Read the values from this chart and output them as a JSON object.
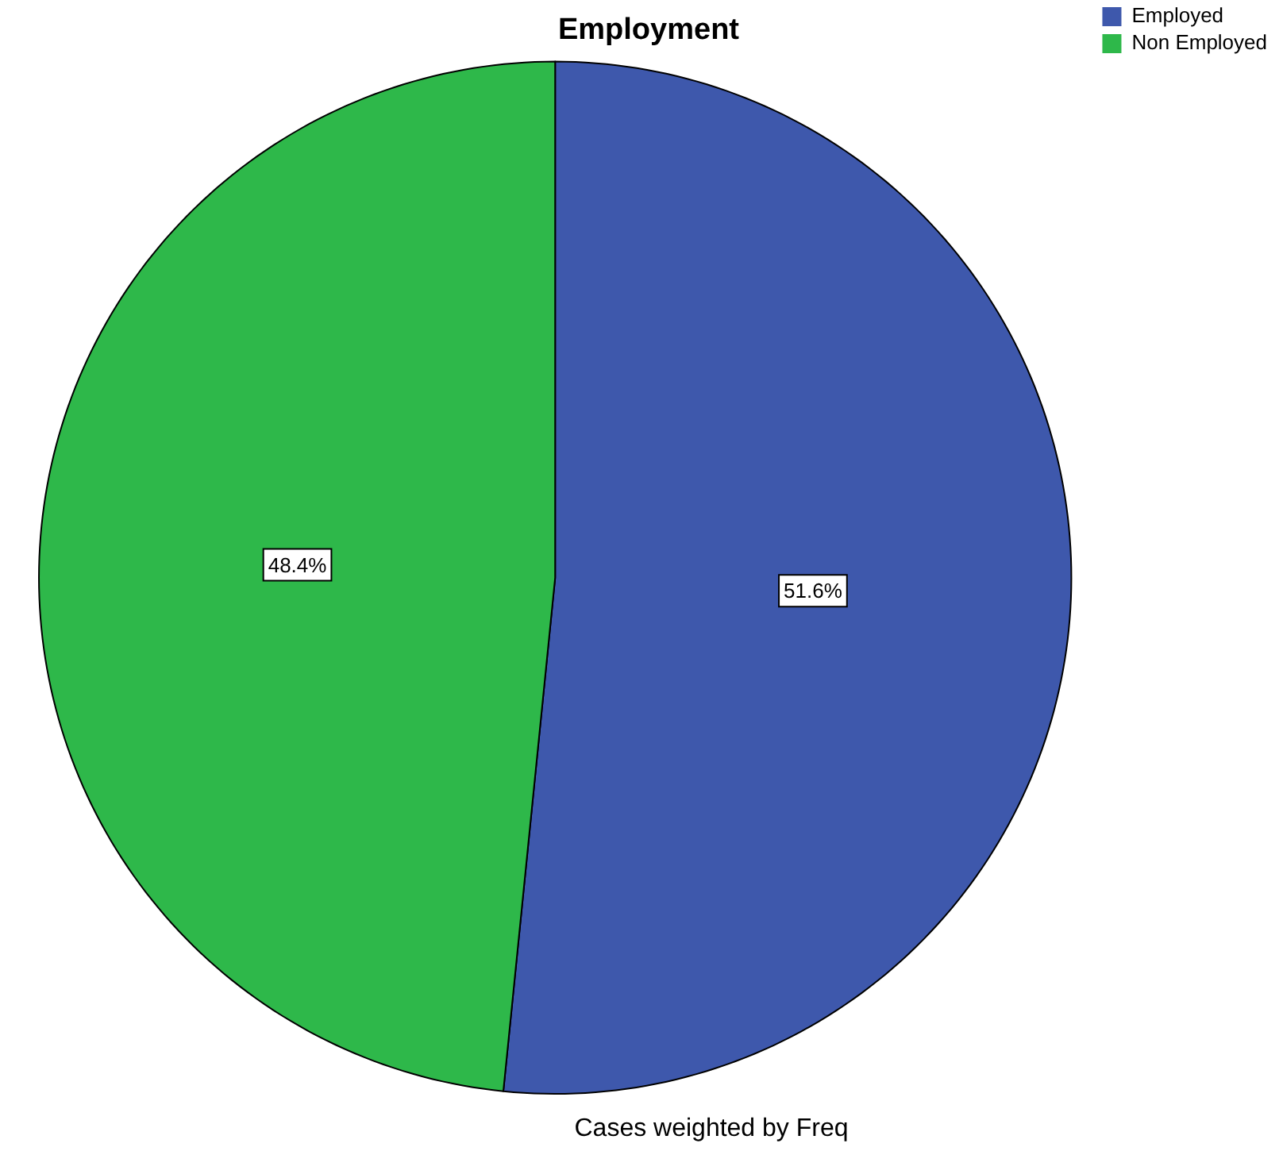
{
  "chart_data": {
    "type": "pie",
    "title": "Employment",
    "categories": [
      "Employed",
      "Non Employed"
    ],
    "values": [
      51.6,
      48.4
    ],
    "colors": [
      "#3e58ac",
      "#2eb84a"
    ],
    "value_labels": [
      "51.6%",
      "48.4%"
    ],
    "legend": "top right",
    "annotations": [
      "Cases weighted by Freq"
    ]
  }
}
